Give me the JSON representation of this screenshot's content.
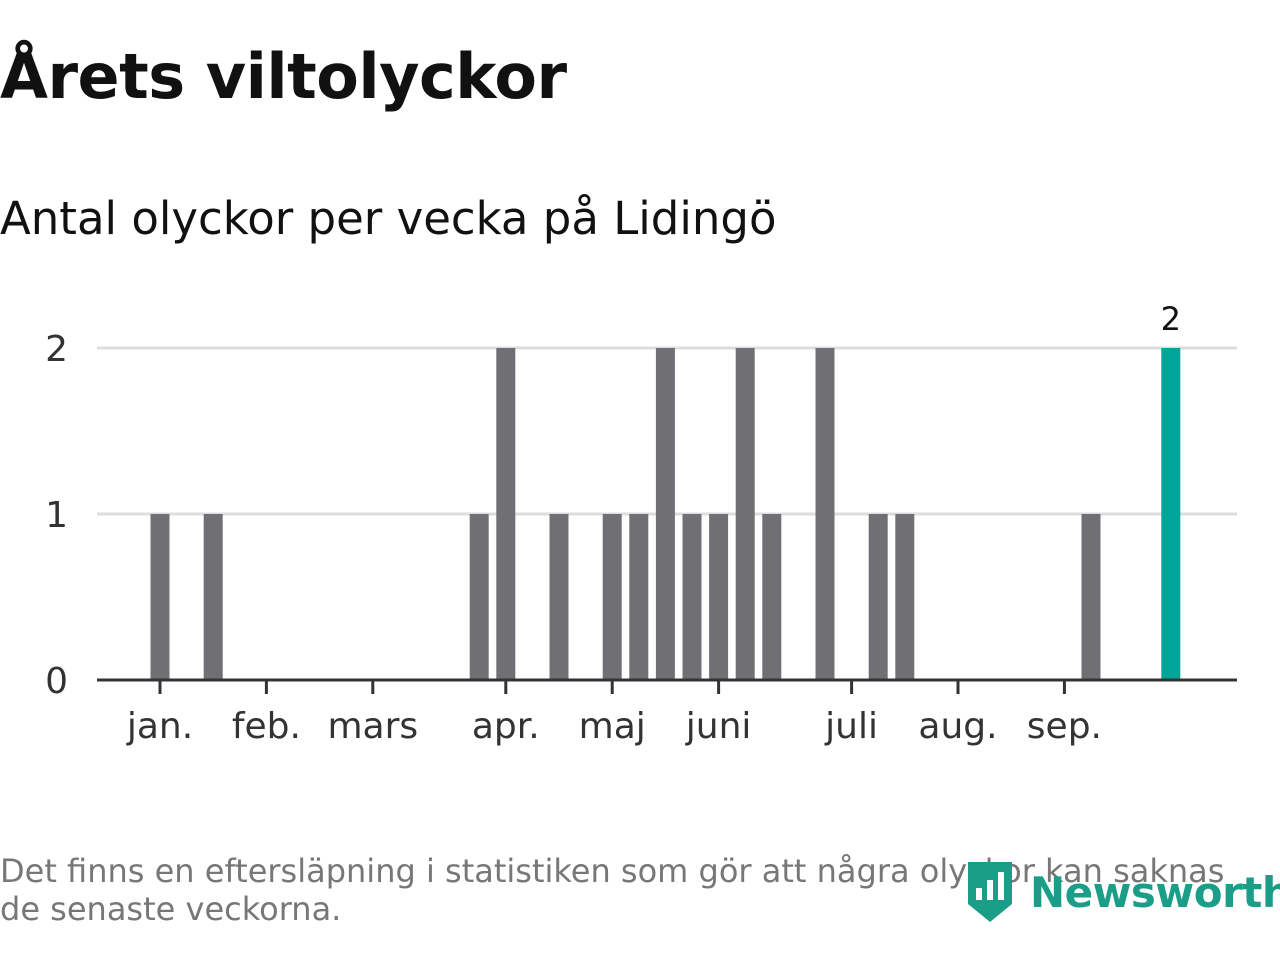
{
  "title": "Årets viltolyckor",
  "subtitle": "Antal olyckor per vecka på Lidingö",
  "footnote": "Det finns en eftersläpning i statistiken som gör att några olyckor kan saknas de senaste veckorna.",
  "logo": {
    "text": "Newsworthy",
    "icon": "newsworthy-logo-icon"
  },
  "colors": {
    "bar": "#707074",
    "highlight": "#00a59a",
    "grid": "#dddddd",
    "axis": "#333333",
    "brand": "#1a9e88"
  },
  "chart_data": {
    "type": "bar",
    "title": "Årets viltolyckor",
    "subtitle": "Antal olyckor per vecka på Lidingö",
    "x_unit": "ISO week",
    "ylim": [
      0,
      2
    ],
    "y_ticks": [
      0,
      1,
      2
    ],
    "x_range": [
      1,
      41
    ],
    "grid": true,
    "month_ticks": [
      {
        "label": "jan.",
        "week": 1
      },
      {
        "label": "feb.",
        "week": 5
      },
      {
        "label": "mars",
        "week": 9
      },
      {
        "label": "apr.",
        "week": 14
      },
      {
        "label": "maj",
        "week": 18
      },
      {
        "label": "juni",
        "week": 22
      },
      {
        "label": "juli",
        "week": 27
      },
      {
        "label": "aug.",
        "week": 31
      },
      {
        "label": "sep.",
        "week": 35
      }
    ],
    "bars": [
      {
        "week": 1,
        "value": 1
      },
      {
        "week": 3,
        "value": 1
      },
      {
        "week": 13,
        "value": 1
      },
      {
        "week": 14,
        "value": 2
      },
      {
        "week": 16,
        "value": 1
      },
      {
        "week": 18,
        "value": 1
      },
      {
        "week": 19,
        "value": 1
      },
      {
        "week": 20,
        "value": 2
      },
      {
        "week": 21,
        "value": 1
      },
      {
        "week": 22,
        "value": 1
      },
      {
        "week": 23,
        "value": 2
      },
      {
        "week": 24,
        "value": 1
      },
      {
        "week": 26,
        "value": 2
      },
      {
        "week": 28,
        "value": 1
      },
      {
        "week": 29,
        "value": 1
      },
      {
        "week": 36,
        "value": 1
      },
      {
        "week": 39,
        "value": 2,
        "highlight": true,
        "label": "2"
      }
    ]
  }
}
